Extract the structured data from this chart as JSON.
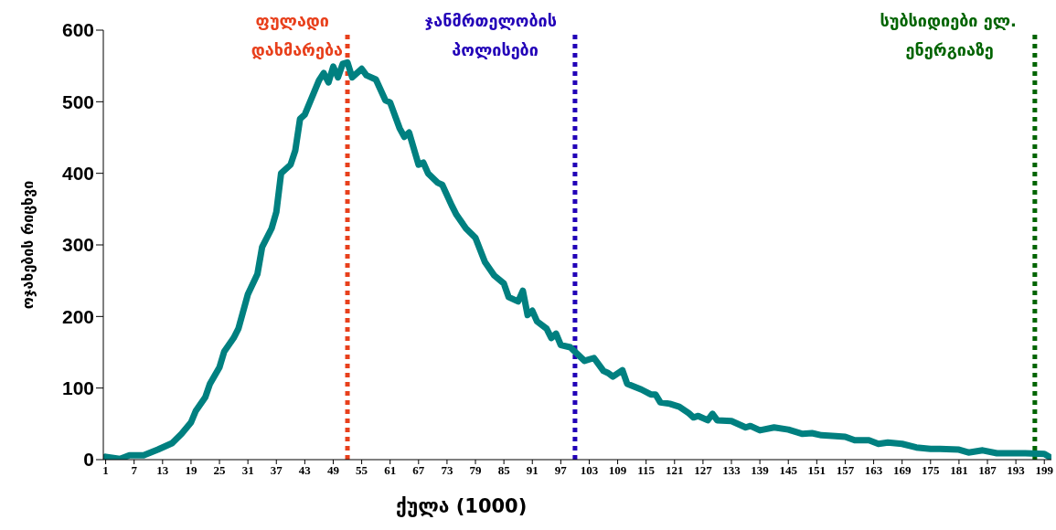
{
  "chart_data": {
    "type": "line",
    "xlabel": "ქულა (1000)",
    "ylabel": "ოჯახების რიცხვი",
    "x": [
      1,
      4,
      6,
      9,
      12,
      15,
      17,
      19,
      20,
      22,
      23,
      25,
      26,
      28,
      29,
      31,
      33,
      34,
      36,
      37,
      38,
      40,
      41,
      42,
      43,
      45,
      46,
      47,
      48,
      49,
      50,
      51,
      52,
      53,
      55,
      56,
      58,
      60,
      61,
      63,
      64,
      65,
      67,
      68,
      69,
      71,
      72,
      74,
      75,
      77,
      79,
      81,
      83,
      85,
      86,
      88,
      89,
      90,
      91,
      92,
      94,
      95,
      96,
      97,
      99,
      102,
      104,
      106,
      107,
      108,
      110,
      111,
      114,
      116,
      117,
      118,
      120,
      122,
      124,
      125,
      126,
      128,
      129,
      130,
      133,
      136,
      137,
      139,
      142,
      145,
      148,
      150,
      152,
      155,
      157,
      159,
      162,
      164,
      166,
      169,
      172,
      175,
      177,
      181,
      183,
      186,
      189,
      191,
      195,
      199,
      200
    ],
    "series": [
      {
        "color": "#008080",
        "values": [
          4,
          1,
          6,
          6,
          14,
          23,
          36,
          52,
          68,
          87,
          106,
          129,
          151,
          170,
          183,
          231,
          259,
          297,
          323,
          346,
          400,
          412,
          432,
          476,
          482,
          514,
          530,
          540,
          527,
          549,
          534,
          553,
          555,
          534,
          546,
          537,
          531,
          502,
          499,
          463,
          451,
          457,
          412,
          415,
          400,
          387,
          384,
          355,
          342,
          323,
          310,
          276,
          257,
          246,
          227,
          221,
          236,
          202,
          208,
          193,
          183,
          170,
          176,
          160,
          157,
          138,
          142,
          124,
          121,
          116,
          125,
          106,
          98,
          91,
          91,
          80,
          78,
          74,
          65,
          59,
          61,
          55,
          64,
          55,
          54,
          45,
          47,
          41,
          45,
          42,
          36,
          37,
          34,
          33,
          32,
          27,
          27,
          22,
          24,
          22,
          17,
          15,
          15,
          14,
          10,
          13,
          9,
          9,
          9,
          8,
          4
        ]
      }
    ],
    "xlim": [
      0.5,
      200.5
    ],
    "xticks": [
      1,
      7,
      13,
      19,
      25,
      31,
      37,
      43,
      49,
      55,
      61,
      67,
      73,
      79,
      85,
      91,
      97,
      103,
      109,
      115,
      121,
      127,
      133,
      139,
      145,
      151,
      157,
      163,
      169,
      175,
      181,
      187,
      193,
      199
    ],
    "ylim": [
      0,
      600
    ],
    "yticks": [
      0,
      100,
      200,
      300,
      400,
      500,
      600
    ],
    "ref_lines": [
      {
        "axis": "x",
        "value": 52,
        "label": "ფულადი დახმარება",
        "color": "#e8401c",
        "line_style": "dotted"
      },
      {
        "axis": "x",
        "value": 100,
        "label": "ჯანმრთელობის პოლისები",
        "color": "#2200b8",
        "line_style": "dotted"
      },
      {
        "axis": "x",
        "value": 197,
        "label": "სუბსიდიები ელ. ენერგიაზე",
        "color": "#006400",
        "line_style": "dotted"
      }
    ]
  }
}
